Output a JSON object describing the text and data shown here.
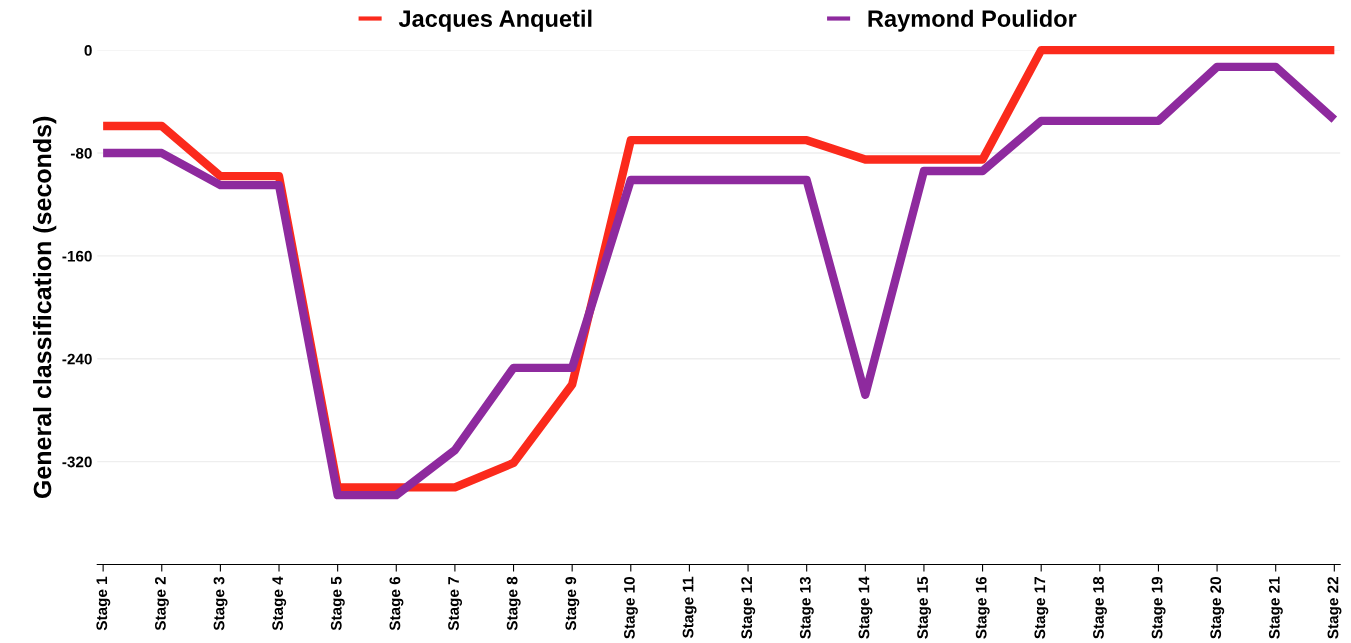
{
  "chart_data": {
    "type": "line",
    "ylabel": "General classification (seconds)",
    "categories": [
      "Stage 1",
      "Stage 2",
      "Stage 3",
      "Stage 4",
      "Stage 5",
      "Stage 6",
      "Stage 7",
      "Stage 8",
      "Stage 9",
      "Stage 10",
      "Stage 11",
      "Stage 12",
      "Stage 13",
      "Stage 14",
      "Stage 15",
      "Stage 16",
      "Stage 17",
      "Stage 18",
      "Stage 19",
      "Stage 20",
      "Stage 21",
      "Stage 22"
    ],
    "series": [
      {
        "name": "Jacques Anquetil",
        "color": "#fb2a1c",
        "values": [
          -59,
          -59,
          -98,
          -98,
          -340,
          -340,
          -340,
          -321,
          -260,
          -70,
          -70,
          -70,
          -70,
          -85,
          -85,
          -85,
          0,
          0,
          0,
          0,
          0,
          0
        ]
      },
      {
        "name": "Raymond Poulidor",
        "color": "#8e2a9e",
        "values": [
          -80,
          -80,
          -105,
          -105,
          -346,
          -346,
          -311,
          -247,
          -247,
          -101,
          -101,
          -101,
          -101,
          -268,
          -94,
          -94,
          -55,
          -55,
          -55,
          -13,
          -13,
          -54
        ]
      }
    ],
    "ylim": [
      -400,
      0
    ],
    "yticks": [
      0,
      -80,
      -160,
      -240,
      -320
    ],
    "grid": "y",
    "legend": "top",
    "marker": "none",
    "line_style": "solid"
  }
}
